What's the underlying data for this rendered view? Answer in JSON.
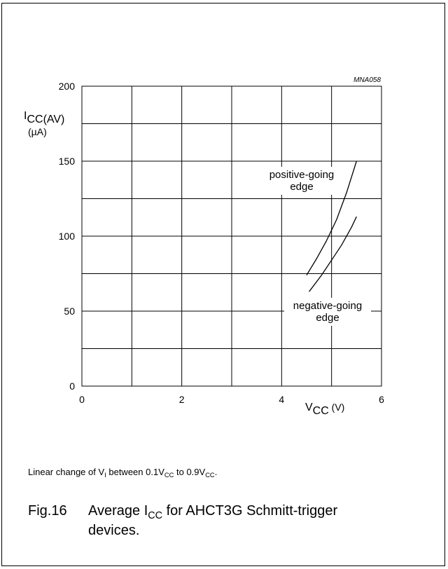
{
  "chart_data": {
    "type": "line",
    "code": "MNA058",
    "x_range": [
      0,
      6
    ],
    "y_range": [
      0,
      200
    ],
    "x_ticks": [
      "0",
      "2",
      "4",
      "6"
    ],
    "y_ticks": [
      "0",
      "50",
      "100",
      "150",
      "200"
    ],
    "grid": true,
    "xlabel": {
      "main": "V",
      "sub": "CC",
      "unit": " (V)"
    },
    "ylabel": {
      "main": "I",
      "sub": "CC(AV)",
      "unit": "(µA)"
    },
    "series": [
      {
        "name": "positive-going edge",
        "label_lines": [
          "positive-going",
          "edge"
        ],
        "x": [
          4.5,
          4.7,
          4.9,
          5.1,
          5.3,
          5.5
        ],
        "y": [
          74,
          85,
          97,
          111,
          129,
          150
        ]
      },
      {
        "name": "negative-going edge",
        "label_lines": [
          "negative-going",
          "edge"
        ],
        "x": [
          4.55,
          4.8,
          5.0,
          5.2,
          5.4,
          5.5
        ],
        "y": [
          63,
          74,
          84,
          94,
          106,
          113
        ]
      }
    ]
  },
  "note": {
    "pre": "Linear change of V",
    "sub1": "I",
    "mid": " between 0.1V",
    "sub2": "CC",
    "mid2": " to 0.9V",
    "sub3": "CC",
    "post": "."
  },
  "caption": {
    "number": "Fig.16",
    "pre": "Average I",
    "sub": "CC",
    "post": " for AHCT3G Schmitt-trigger devices."
  }
}
